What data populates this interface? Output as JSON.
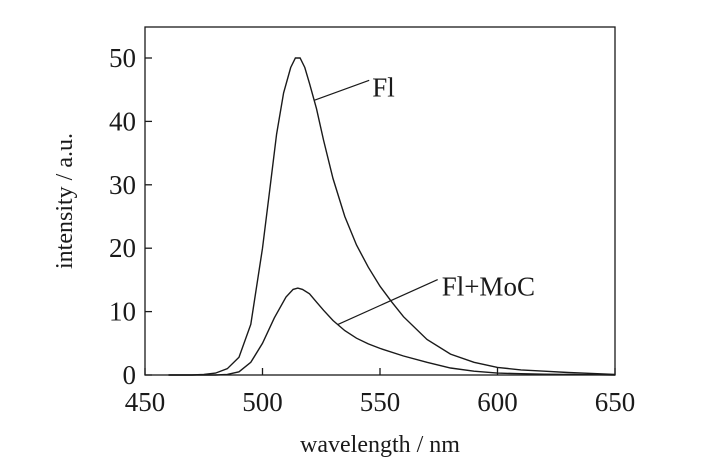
{
  "chart_data": {
    "type": "line",
    "title": "",
    "xlabel": "wavelength / nm",
    "ylabel": "intensity / a.u.",
    "xlim": [
      450,
      650
    ],
    "ylim": [
      0,
      55
    ],
    "xticks": [
      450,
      500,
      550,
      600,
      650
    ],
    "yticks": [
      0,
      10,
      20,
      30,
      40,
      50
    ],
    "grid": false,
    "legend": "none",
    "annotations": [
      {
        "text": "Fl",
        "series": 0,
        "x": 522
      },
      {
        "text": "Fl+MoC",
        "series": 1,
        "x": 532
      }
    ],
    "series": [
      {
        "name": "Fl",
        "color": "#1a1a1a",
        "x": [
          460,
          470,
          475,
          480,
          485,
          490,
          495,
          500,
          503,
          506,
          509,
          512,
          514,
          516,
          518,
          520,
          523,
          526,
          530,
          535,
          540,
          545,
          550,
          555,
          560,
          570,
          580,
          590,
          600,
          610,
          620,
          630,
          640,
          650
        ],
        "y": [
          0,
          0,
          0.1,
          0.3,
          1.0,
          2.8,
          8.0,
          20.0,
          29.0,
          38.0,
          44.5,
          48.5,
          50.0,
          50.0,
          48.5,
          46.0,
          42.0,
          37.0,
          31.0,
          25.0,
          20.5,
          17.0,
          14.0,
          11.5,
          9.2,
          5.6,
          3.3,
          2.0,
          1.2,
          0.8,
          0.6,
          0.4,
          0.25,
          0.1
        ]
      },
      {
        "name": "Fl+MoC",
        "color": "#1a1a1a",
        "x": [
          460,
          480,
          485,
          490,
          495,
          500,
          505,
          510,
          513,
          515,
          517,
          520,
          523,
          526,
          530,
          535,
          540,
          545,
          550,
          560,
          570,
          580,
          590,
          600,
          610,
          620,
          630,
          640,
          650
        ],
        "y": [
          0,
          0,
          0.1,
          0.5,
          2.0,
          5.0,
          9.0,
          12.3,
          13.5,
          13.7,
          13.5,
          12.8,
          11.5,
          10.2,
          8.6,
          7.0,
          5.8,
          4.9,
          4.2,
          3.0,
          2.0,
          1.1,
          0.6,
          0.3,
          0.2,
          0.12,
          0.08,
          0.04,
          0.0
        ]
      }
    ]
  }
}
